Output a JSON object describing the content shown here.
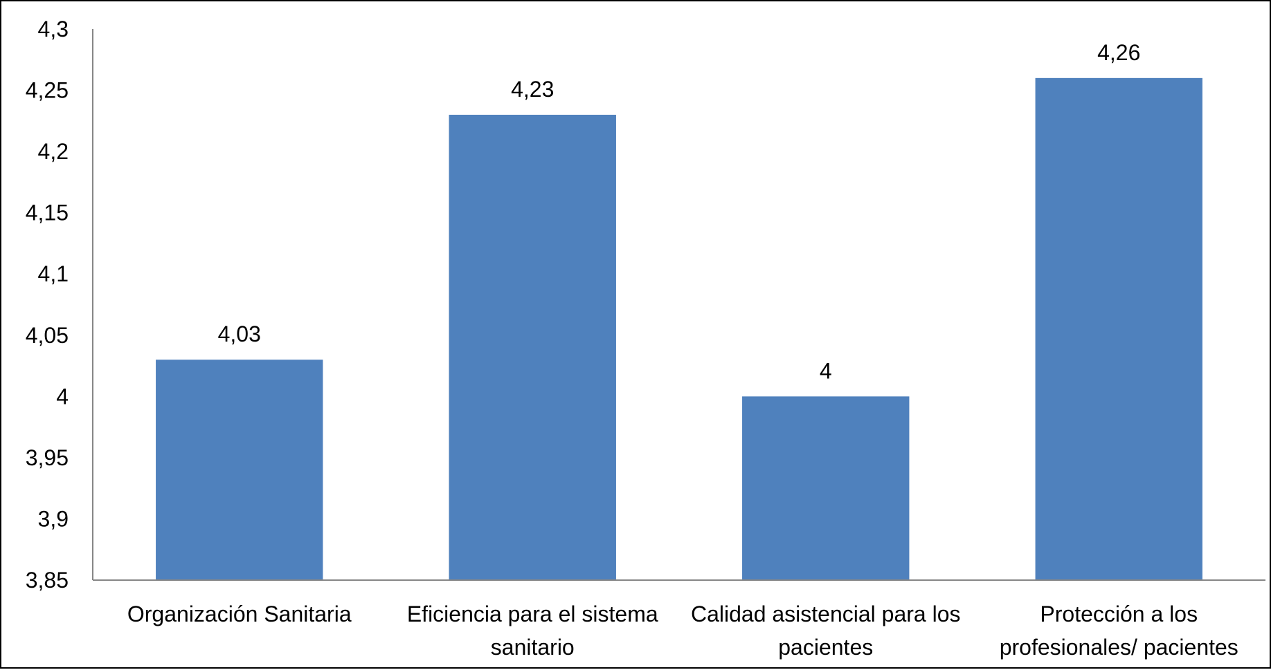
{
  "chart_data": {
    "type": "bar",
    "categories": [
      [
        "Organización Sanitaria"
      ],
      [
        "Eficiencia para el sistema",
        "sanitario"
      ],
      [
        "Calidad asistencial para los",
        "pacientes"
      ],
      [
        "Protección a los",
        "profesionales/ pacientes"
      ]
    ],
    "values": [
      4.03,
      4.23,
      4.0,
      4.26
    ],
    "data_labels": [
      "4,03",
      "4,23",
      "4",
      "4,26"
    ],
    "title": "",
    "xlabel": "",
    "ylabel": "",
    "ylim": [
      3.85,
      4.3
    ],
    "yticks": [
      3.85,
      3.9,
      3.95,
      4.0,
      4.05,
      4.1,
      4.15,
      4.2,
      4.25,
      4.3
    ],
    "ytick_labels": [
      "3,85",
      "3,9",
      "3,95",
      "4",
      "4,05",
      "4,1",
      "4,15",
      "4,2",
      "4,25",
      "4,3"
    ],
    "grid": false,
    "legend": "none",
    "bar_color": "#4F81BD",
    "axis_color": "#868686"
  }
}
